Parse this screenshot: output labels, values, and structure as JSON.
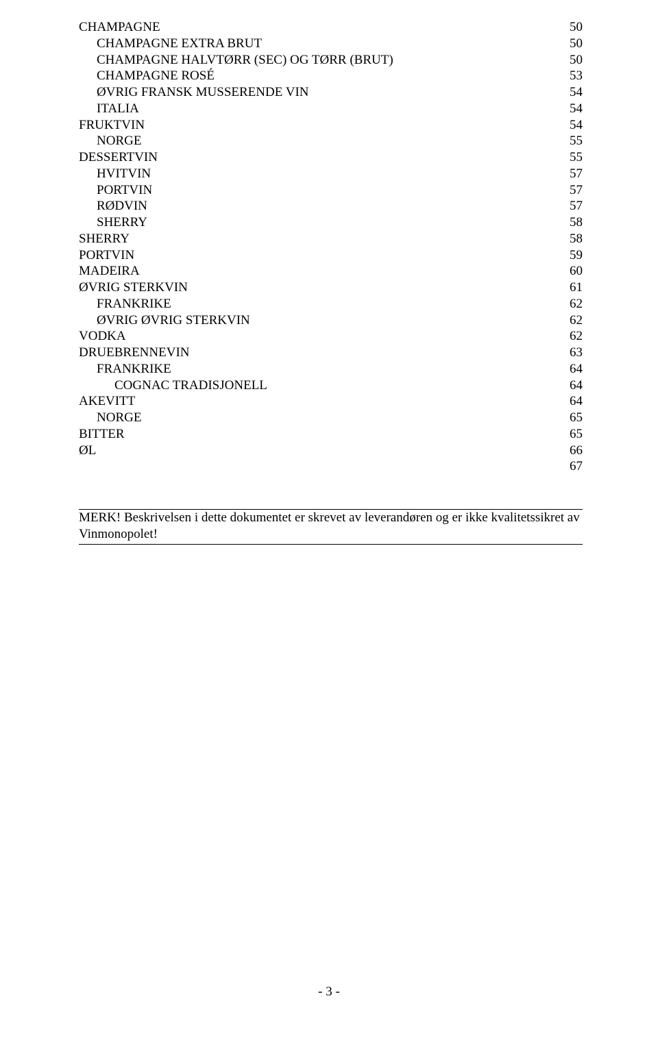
{
  "toc": [
    {
      "label": "CHAMPAGNE",
      "page": "50",
      "indent": 0
    },
    {
      "label": "CHAMPAGNE EXTRA BRUT",
      "page": "50",
      "indent": 1
    },
    {
      "label": "CHAMPAGNE HALVTØRR (SEC) OG TØRR (BRUT)",
      "page": "50",
      "indent": 1
    },
    {
      "label": "CHAMPAGNE ROSÉ",
      "page": "53",
      "indent": 1
    },
    {
      "label": "ØVRIG FRANSK MUSSERENDE VIN",
      "page": "54",
      "indent": 1
    },
    {
      "label": "ITALIA",
      "page": "54",
      "indent": 1
    },
    {
      "label": "FRUKTVIN",
      "page": "54",
      "indent": 0
    },
    {
      "label": "NORGE",
      "page": "55",
      "indent": 1
    },
    {
      "label": "DESSERTVIN",
      "page": "55",
      "indent": 0
    },
    {
      "label": "HVITVIN",
      "page": "57",
      "indent": 1
    },
    {
      "label": "PORTVIN",
      "page": "57",
      "indent": 1
    },
    {
      "label": "RØDVIN",
      "page": "57",
      "indent": 1
    },
    {
      "label": "SHERRY",
      "page": "58",
      "indent": 1
    },
    {
      "label": "SHERRY",
      "page": "58",
      "indent": 0
    },
    {
      "label": "PORTVIN",
      "page": "59",
      "indent": 0
    },
    {
      "label": "MADEIRA",
      "page": "60",
      "indent": 0
    },
    {
      "label": "ØVRIG STERKVIN",
      "page": "61",
      "indent": 0
    },
    {
      "label": "FRANKRIKE",
      "page": "62",
      "indent": 1
    },
    {
      "label": "ØVRIG ØVRIG STERKVIN",
      "page": "62",
      "indent": 1
    },
    {
      "label": "VODKA",
      "page": "62",
      "indent": 0
    },
    {
      "label": "DRUEBRENNEVIN",
      "page": "63",
      "indent": 0
    },
    {
      "label": "FRANKRIKE",
      "page": "64",
      "indent": 1
    },
    {
      "label": "COGNAC TRADISJONELL",
      "page": "64",
      "indent": 2
    },
    {
      "label": "AKEVITT",
      "page": "64",
      "indent": 0
    },
    {
      "label": "NORGE",
      "page": "65",
      "indent": 1
    },
    {
      "label": "BITTER",
      "page": "65",
      "indent": 0
    },
    {
      "label": "ØL",
      "page": "66",
      "indent": 0
    },
    {
      "label": "",
      "page": "67",
      "indent": 0
    }
  ],
  "note": "MERK! Beskrivelsen i dette dokumentet er skrevet av leverandøren og er ikke kvalitetssikret av Vinmonopolet!",
  "footer": "- 3 -"
}
